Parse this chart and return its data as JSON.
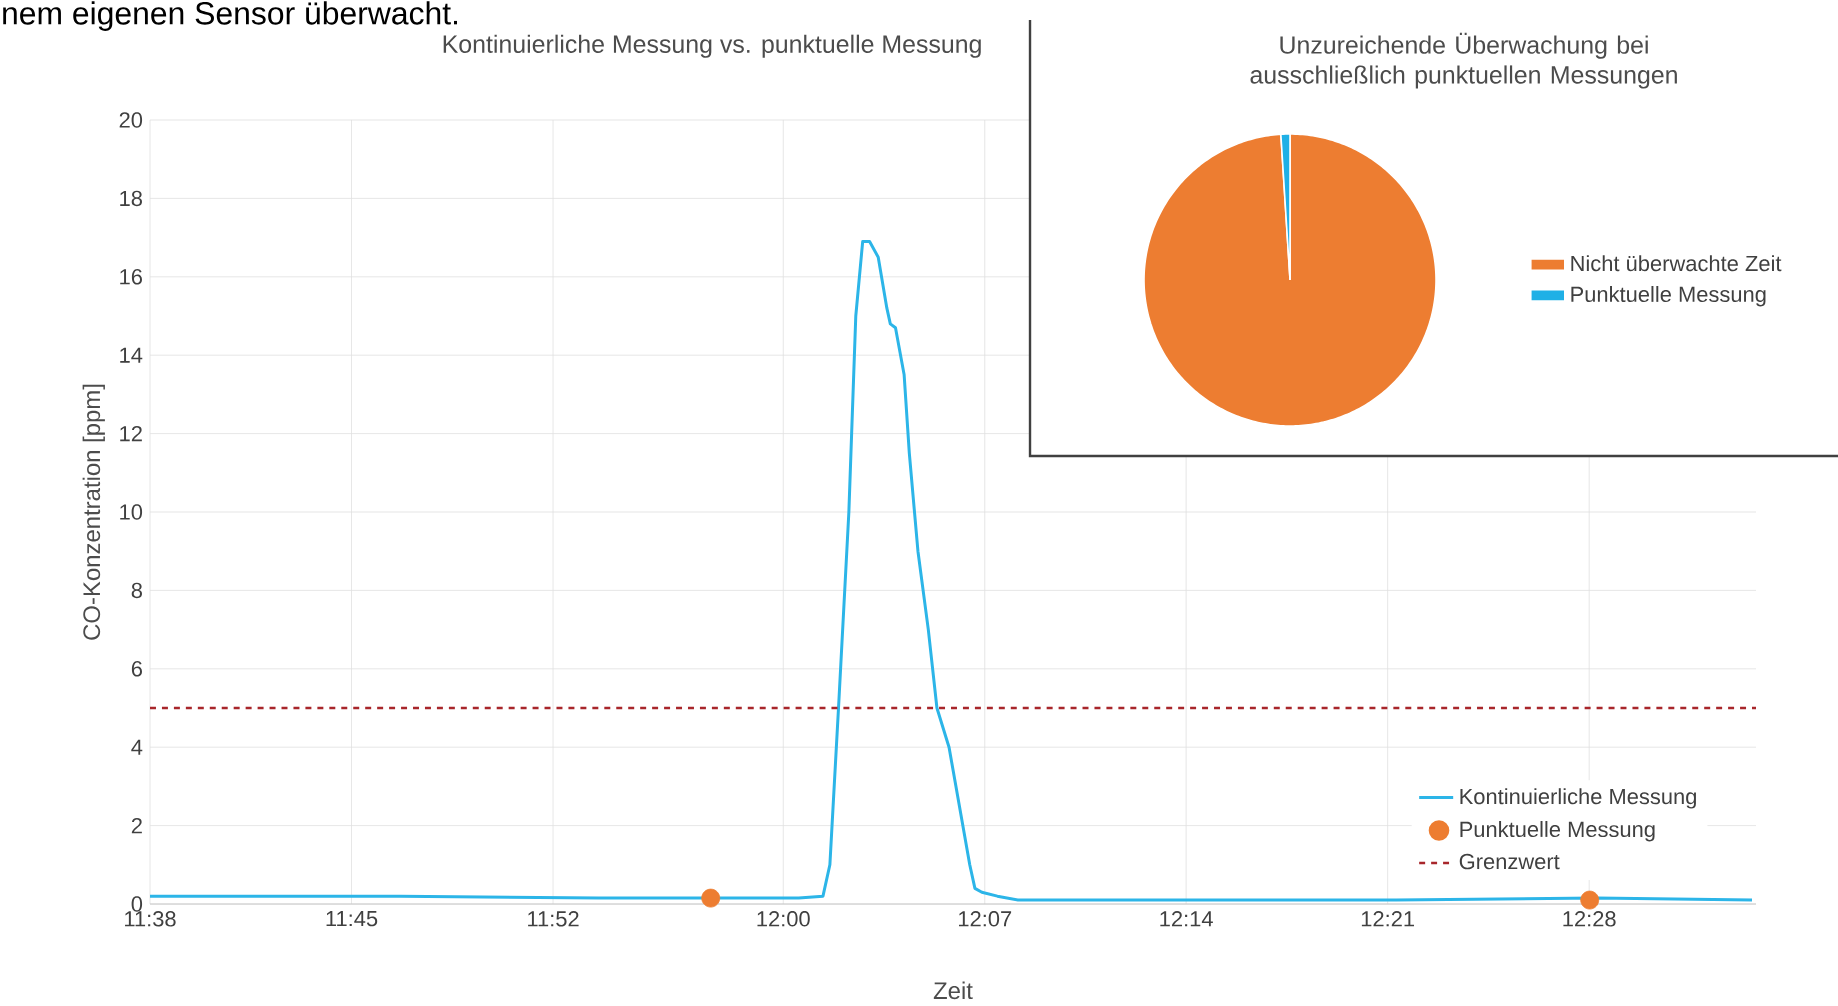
{
  "chart_data": [
    {
      "type": "line",
      "title": "Kontinuierliche Messung vs. punktuelle Messung",
      "xlabel": "Zeit",
      "ylabel": "CO-Konzentration [ppm]",
      "annotations": [
        "nem eigenen Sensor überwacht."
      ],
      "xlim": [
        11.6333,
        12.5633
      ],
      "ylim": [
        0,
        20
      ],
      "xticks": [
        {
          "value": 11.6333,
          "label": "11:38"
        },
        {
          "value": 11.75,
          "label": "11:45"
        },
        {
          "value": 11.8667,
          "label": "11:52"
        },
        {
          "value": 12.0,
          "label": "12:00"
        },
        {
          "value": 12.1167,
          "label": "12:07"
        },
        {
          "value": 12.2333,
          "label": "12:14"
        },
        {
          "value": 12.35,
          "label": "12:21"
        },
        {
          "value": 12.4667,
          "label": "12:28"
        }
      ],
      "yticks": [
        0,
        2,
        4,
        6,
        8,
        10,
        12,
        14,
        16,
        18,
        20
      ],
      "grid": true,
      "legend": "bottom right",
      "series": [
        {
          "name": "Kontinuierliche Messung",
          "type": "line",
          "marker": "none",
          "color": "#2cb5e8",
          "x": [
            11.6333,
            11.778,
            11.893,
            11.951,
            12.009,
            12.023,
            12.027,
            12.032,
            12.038,
            12.042,
            12.046,
            12.05,
            12.055,
            12.06,
            12.062,
            12.065,
            12.07,
            12.073,
            12.078,
            12.084,
            12.089,
            12.096,
            12.102,
            12.108,
            12.111,
            12.115,
            12.124,
            12.136,
            12.24,
            12.355,
            12.471,
            12.561
          ],
          "values": [
            0.2,
            0.2,
            0.15,
            0.15,
            0.15,
            0.2,
            1,
            5,
            10,
            15,
            16.9,
            16.9,
            16.5,
            15.2,
            14.8,
            14.7,
            13.5,
            11.5,
            9,
            7,
            5,
            4,
            2.5,
            1,
            0.4,
            0.3,
            0.2,
            0.1,
            0.1,
            0.1,
            0.15,
            0.1
          ]
        },
        {
          "name": "Punktuelle Messung",
          "type": "scatter",
          "marker": "circle",
          "color": "#ed7d31",
          "x": [
            11.958,
            12.467
          ],
          "values": [
            0.15,
            0.1
          ]
        }
      ],
      "ref_lines": [
        {
          "axis": "y",
          "value": 5,
          "label": "Grenzwert",
          "color": "#a8262b",
          "line_style": "dashed"
        }
      ]
    },
    {
      "type": "pie",
      "title": "Unzureichende Überwachung bei ausschließlich punktuellen Messungen",
      "legend": "right",
      "categories": [
        "Nicht überwachte Zeit",
        "Punktuelle Messung"
      ],
      "values": [
        99,
        1
      ],
      "colors": [
        "#ed7d31",
        "#1fb0e6"
      ]
    }
  ]
}
